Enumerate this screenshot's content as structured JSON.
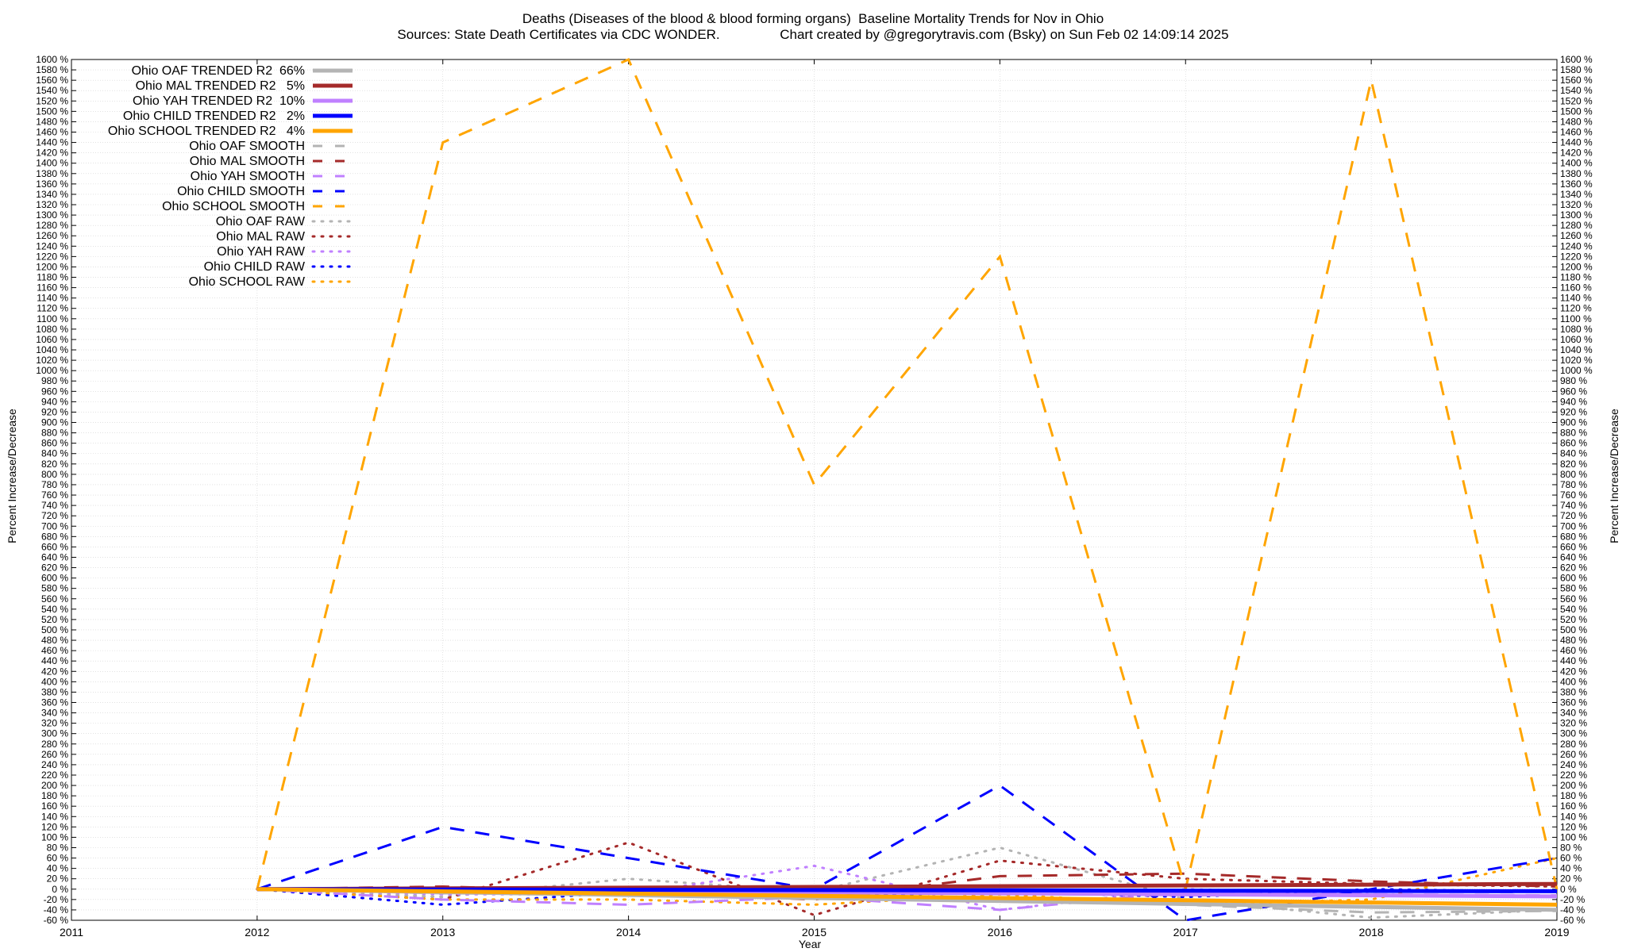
{
  "title_line1": "Deaths (Diseases of the blood & blood forming organs)  Baseline Mortality Trends for Nov in Ohio",
  "title_line2": "Sources: State Death Certificates via CDC WONDER.                Chart created by @gregorytravis.com (Bsky) on Sun Feb 02 14:09:14 2025",
  "chart_data": {
    "type": "line",
    "xlabel": "Year",
    "ylabel": "Percent Increase/Decrease",
    "xlim": [
      2011,
      2019
    ],
    "ylim": [
      -60,
      1600
    ],
    "x_ticks": [
      2011,
      2012,
      2013,
      2014,
      2015,
      2016,
      2017,
      2018,
      2019
    ],
    "y_tick_step": 20,
    "y_tick_suffix": " %",
    "grid": true,
    "legend_position": "top-left",
    "series": [
      {
        "name": "Ohio OAF TRENDED R2  66%",
        "style": "trend",
        "color": "#b4b4b4",
        "x": [
          2012,
          2019
        ],
        "y": [
          0,
          -40
        ]
      },
      {
        "name": "Ohio MAL TRENDED R2   5%",
        "style": "trend",
        "color": "#a52a2a",
        "x": [
          2012,
          2019
        ],
        "y": [
          0,
          10
        ]
      },
      {
        "name": "Ohio YAH TRENDED R2  10%",
        "style": "trend",
        "color": "#c080ff",
        "x": [
          2012,
          2019
        ],
        "y": [
          0,
          -14
        ]
      },
      {
        "name": "Ohio CHILD TRENDED R2   2%",
        "style": "trend",
        "color": "#0000ff",
        "x": [
          2012,
          2019
        ],
        "y": [
          0,
          -4
        ]
      },
      {
        "name": "Ohio SCHOOL TRENDED R2   4%",
        "style": "trend",
        "color": "#ffa500",
        "x": [
          2012,
          2019
        ],
        "y": [
          0,
          -30
        ]
      },
      {
        "name": "Ohio OAF SMOOTH",
        "style": "smooth",
        "color": "#b4b4b4",
        "x": [
          2012,
          2013,
          2014,
          2015,
          2016,
          2017,
          2018,
          2019
        ],
        "y": [
          0,
          -8,
          -10,
          -12,
          -20,
          -30,
          -45,
          -42
        ]
      },
      {
        "name": "Ohio MAL SMOOTH",
        "style": "smooth",
        "color": "#a52a2a",
        "x": [
          2012,
          2013,
          2014,
          2015,
          2016,
          2017,
          2018,
          2019
        ],
        "y": [
          0,
          5,
          -5,
          -20,
          25,
          30,
          15,
          5
        ]
      },
      {
        "name": "Ohio YAH SMOOTH",
        "style": "smooth",
        "color": "#c080ff",
        "x": [
          2012,
          2013,
          2014,
          2015,
          2016,
          2017,
          2018,
          2019
        ],
        "y": [
          0,
          -20,
          -30,
          -15,
          -40,
          -5,
          -10,
          -12
        ]
      },
      {
        "name": "Ohio CHILD SMOOTH",
        "style": "smooth",
        "color": "#0000ff",
        "x": [
          2012,
          2013,
          2014,
          2015,
          2016,
          2017,
          2018,
          2019
        ],
        "y": [
          0,
          120,
          60,
          0,
          200,
          -60,
          0,
          60
        ]
      },
      {
        "name": "Ohio SCHOOL SMOOTH",
        "style": "smooth",
        "color": "#ffa500",
        "x": [
          2012,
          2013,
          2014,
          2015,
          2016,
          2017,
          2018,
          2019
        ],
        "y": [
          0,
          1440,
          1600,
          780,
          1220,
          0,
          1560,
          0
        ]
      },
      {
        "name": "Ohio OAF RAW",
        "style": "raw",
        "color": "#b4b4b4",
        "x": [
          2012,
          2013,
          2014,
          2015,
          2016,
          2017,
          2018,
          2019
        ],
        "y": [
          0,
          -15,
          20,
          -5,
          80,
          -20,
          -55,
          -40
        ]
      },
      {
        "name": "Ohio MAL RAW",
        "style": "raw",
        "color": "#a52a2a",
        "x": [
          2012,
          2013,
          2014,
          2015,
          2016,
          2017,
          2018,
          2019
        ],
        "y": [
          0,
          -20,
          90,
          -50,
          55,
          20,
          10,
          5
        ]
      },
      {
        "name": "Ohio YAH RAW",
        "style": "raw",
        "color": "#c080ff",
        "x": [
          2012,
          2013,
          2014,
          2015,
          2016,
          2017,
          2018,
          2019
        ],
        "y": [
          0,
          -10,
          -10,
          45,
          -40,
          0,
          -10,
          -15
        ]
      },
      {
        "name": "Ohio CHILD RAW",
        "style": "raw",
        "color": "#0000ff",
        "x": [
          2012,
          2013,
          2014,
          2015,
          2016,
          2017,
          2018,
          2019
        ],
        "y": [
          0,
          -30,
          -5,
          -15,
          -5,
          -15,
          0,
          -5
        ]
      },
      {
        "name": "Ohio SCHOOL RAW",
        "style": "raw",
        "color": "#ffa500",
        "x": [
          2012,
          2013,
          2014,
          2015,
          2016,
          2017,
          2018,
          2019
        ],
        "y": [
          0,
          -20,
          -20,
          -30,
          -10,
          -30,
          -20,
          60
        ]
      }
    ]
  }
}
